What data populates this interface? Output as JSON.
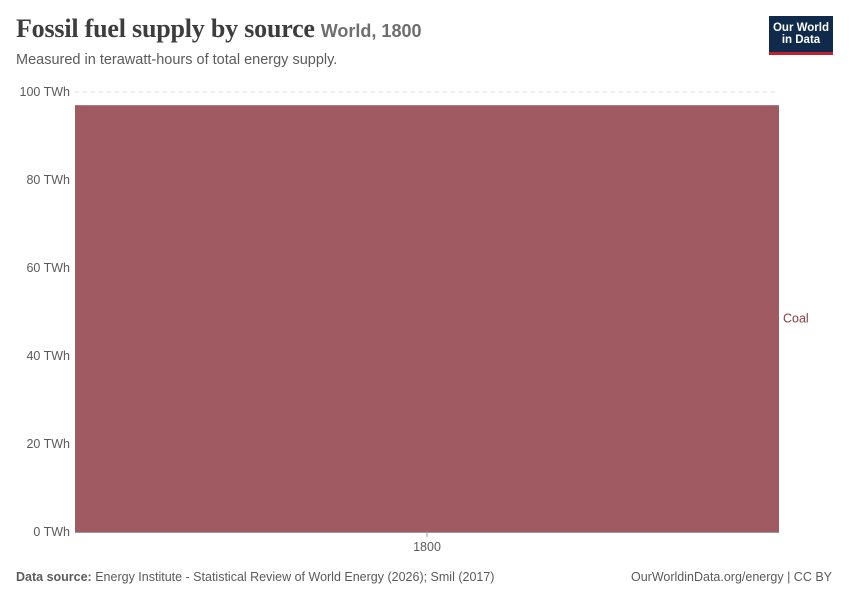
{
  "header": {
    "title": "Fossil fuel supply by source",
    "entity": "World, 1800",
    "subtitle": "Measured in terawatt-hours of total energy supply."
  },
  "logo": {
    "line1": "Our World",
    "line2": "in Data"
  },
  "footer": {
    "source_label": "Data source:",
    "source_text": "Energy Institute - Statistical Review of World Energy (2026); Smil (2017)",
    "right_text": "OurWorldinData.org/energy | CC BY"
  },
  "chart_data": {
    "type": "bar",
    "categories": [
      "1800"
    ],
    "series": [
      {
        "name": "Coal",
        "values": [
          97
        ],
        "color": "#a05a61"
      }
    ],
    "ylabel": "",
    "xlabel": "",
    "ylim": [
      0,
      100
    ],
    "yticks": [
      0,
      20,
      40,
      60,
      80,
      100
    ],
    "ytick_labels": [
      "0 TWh",
      "20 TWh",
      "40 TWh",
      "60 TWh",
      "80 TWh",
      "100 TWh"
    ],
    "grid": true,
    "legend_placement": "right"
  }
}
